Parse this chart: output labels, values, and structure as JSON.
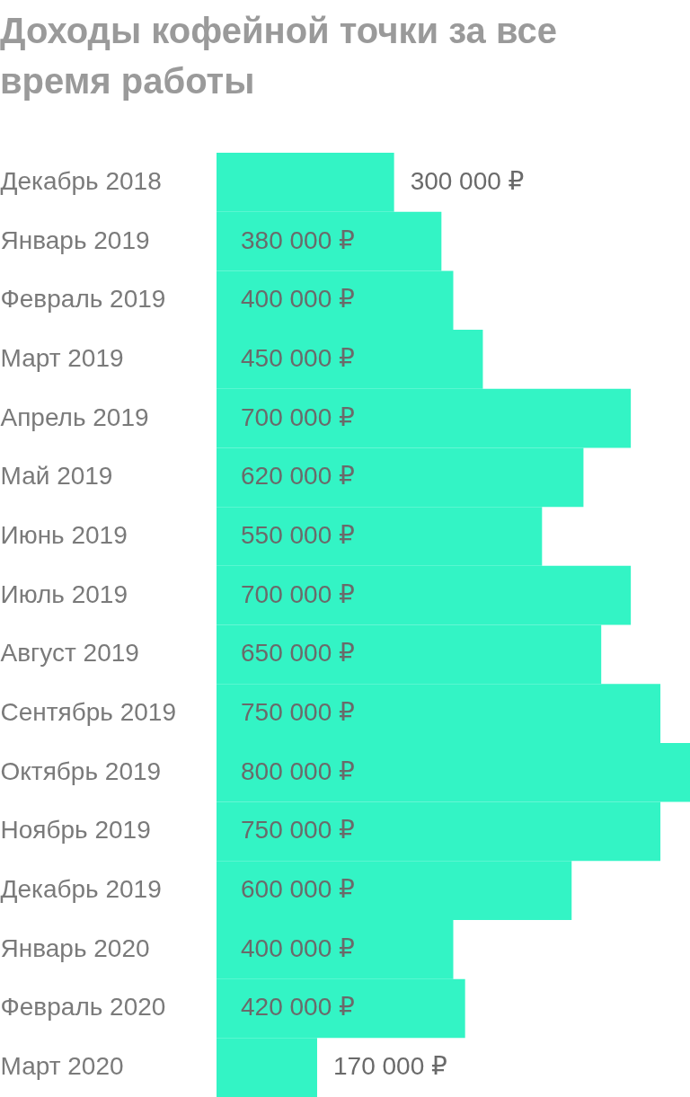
{
  "chart_data": {
    "type": "bar",
    "orientation": "horizontal",
    "title": "Доходы кофейной точки за все время работы",
    "categories": [
      "Декабрь 2018",
      "Январь 2019",
      "Февраль 2019",
      "Март 2019",
      "Апрель 2019",
      "Май 2019",
      "Июнь 2019",
      "Июль 2019",
      "Август 2019",
      "Сентябрь 2019",
      "Октябрь 2019",
      "Ноябрь 2019",
      "Декабрь 2019",
      "Январь 2020",
      "Февраль 2020",
      "Март 2020"
    ],
    "values": [
      300000,
      380000,
      400000,
      450000,
      700000,
      620000,
      550000,
      700000,
      650000,
      750000,
      800000,
      750000,
      600000,
      400000,
      420000,
      170000
    ],
    "value_labels": [
      "300 000 ₽",
      "380 000 ₽",
      "400 000 ₽",
      "450 000 ₽",
      "700 000 ₽",
      "620 000 ₽",
      "550 000 ₽",
      "700 000 ₽",
      "650 000 ₽",
      "750 000 ₽",
      "800 000 ₽",
      "750 000 ₽",
      "600 000 ₽",
      "400 000 ₽",
      "420 000 ₽",
      "170 000 ₽"
    ],
    "color": "#33f4c5"
  }
}
